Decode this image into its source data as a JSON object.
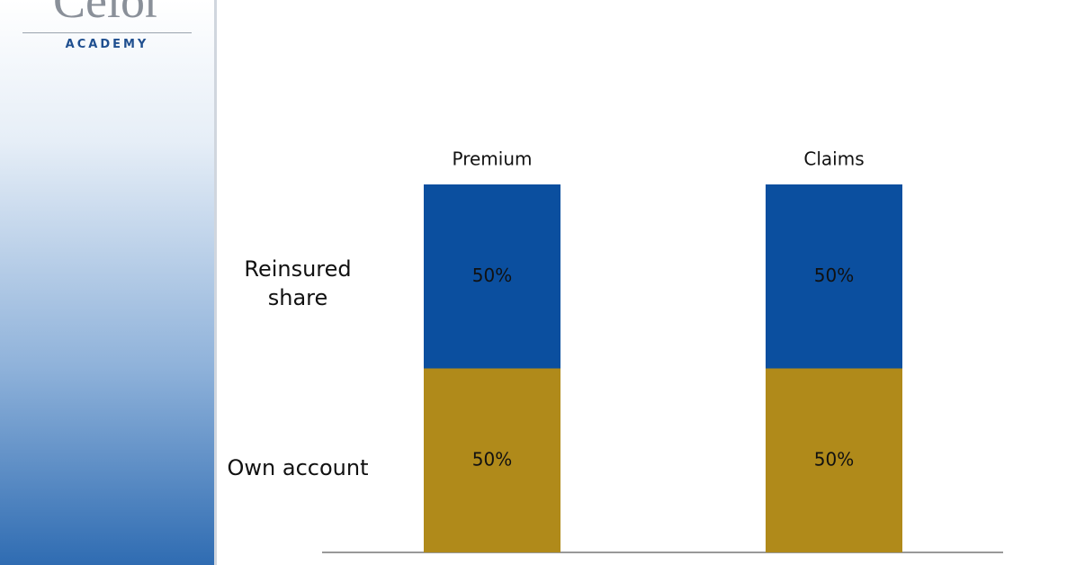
{
  "logo": {
    "name": "Celor",
    "subtitle": "ACADEMY"
  },
  "chart_data": {
    "type": "stacked_bar",
    "categories": [
      "Premium",
      "Claims"
    ],
    "series": [
      {
        "name": "Own account",
        "color": "#b08a1a",
        "values": [
          50,
          50
        ],
        "value_labels": [
          "50%",
          "50%"
        ]
      },
      {
        "name": "Reinsured share",
        "color": "#0b4f9f",
        "values": [
          50,
          50
        ],
        "value_labels": [
          "50%",
          "50%"
        ]
      }
    ],
    "ylim": [
      0,
      100
    ]
  }
}
